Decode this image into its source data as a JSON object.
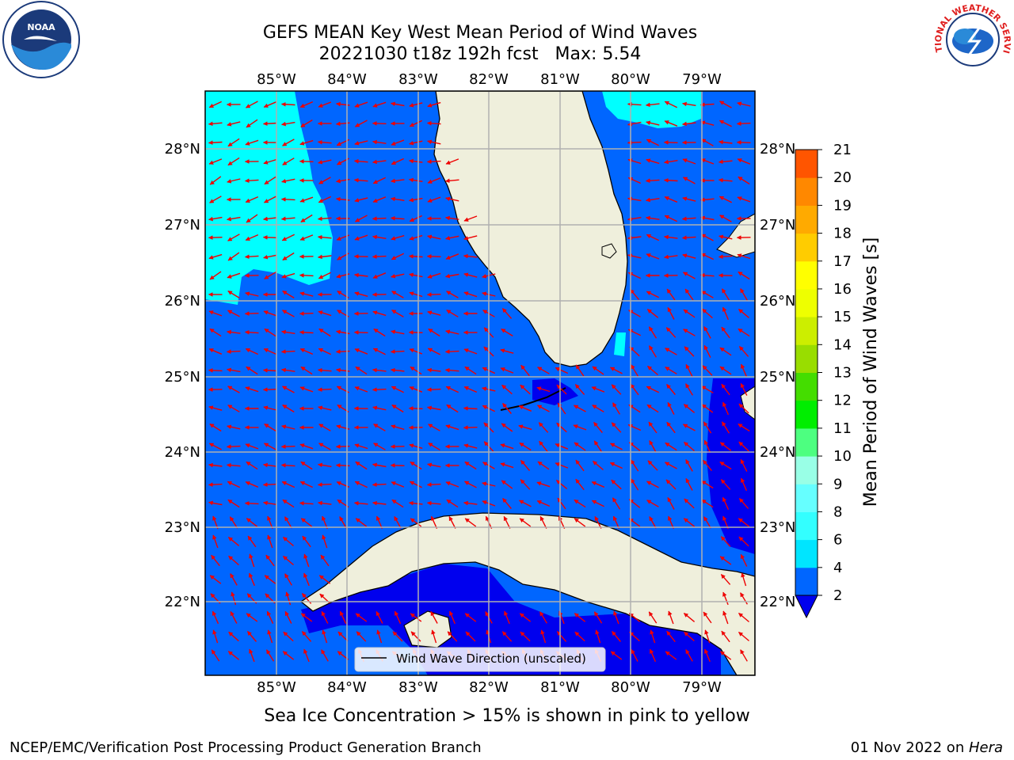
{
  "title_line1": "GEFS MEAN Key West Mean Period of Wind Waves",
  "title_line2": "20221030 t18z 192h fcst   Max: 5.54",
  "lon_labels": [
    "85°W",
    "84°W",
    "83°W",
    "82°W",
    "81°W",
    "80°W",
    "79°W"
  ],
  "lat_labels": [
    "28°N",
    "27°N",
    "26°N",
    "25°N",
    "24°N",
    "23°N",
    "22°N"
  ],
  "legend_label": "Wind Wave Direction (unscaled)",
  "colorbar": {
    "label": "Mean Period of Wind Waves [s]",
    "ticks": [
      "2",
      "4",
      "6",
      "8",
      "9",
      "10",
      "11",
      "12",
      "13",
      "14",
      "15",
      "16",
      "17",
      "18",
      "19",
      "20",
      "21"
    ],
    "colors": [
      "#0066ff",
      "#00e5ff",
      "#33ffff",
      "#66ffff",
      "#99ffe6",
      "#4dff80",
      "#00ee00",
      "#44dd00",
      "#99dd00",
      "#ccee00",
      "#eeff00",
      "#ffff00",
      "#ffcc00",
      "#ffaa00",
      "#ff8800",
      "#ff5500",
      "#ff2200",
      "#ff0000"
    ],
    "under_color": "#0000ee"
  },
  "sea_ice_note": "Sea Ice Concentration > 15% is shown in pink to yellow",
  "footer_left": "NCEP/EMC/Verification Post Processing Product Generation Branch",
  "footer_right_date": "01 Nov 2022 on ",
  "footer_right_host": "Hera",
  "logos": {
    "left": "NOAA",
    "right": "NATIONAL WEATHER SERVICE"
  },
  "field_colors": {
    "ocean": "#0066ff",
    "low": "#0000ee",
    "high": "#00ffff",
    "land": "#efefdc",
    "arrow": "#ee0000",
    "grid": "#b0b0b0"
  }
}
